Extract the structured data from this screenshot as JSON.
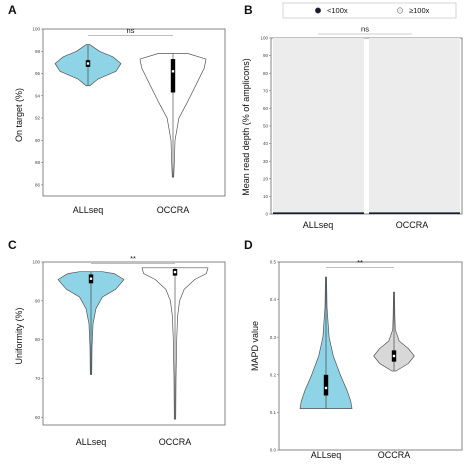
{
  "chart_data": [
    {
      "panel": "A",
      "type": "violin",
      "ylabel": "On target (%)",
      "ylim": [
        85,
        100
      ],
      "yticks": [
        "86",
        "88",
        "90",
        "92",
        "94",
        "96",
        "98",
        "100"
      ],
      "categories": [
        "ALLseq",
        "OCCRA"
      ],
      "violins": [
        {
          "category": "ALLseq",
          "fill": "#8fd3e6",
          "min": 94.9,
          "max": 98.6,
          "q1": 96.6,
          "median": 96.9,
          "q3": 97.2,
          "profile": [
            [
              94.9,
              0.05
            ],
            [
              95.5,
              0.3
            ],
            [
              96.2,
              0.85
            ],
            [
              96.9,
              1.0
            ],
            [
              97.5,
              0.75
            ],
            [
              98.0,
              0.35
            ],
            [
              98.6,
              0.05
            ]
          ]
        },
        {
          "category": "OCCRA",
          "fill": "#ffffff",
          "min": 86.7,
          "max": 97.8,
          "q1": 94.3,
          "median": 96.2,
          "q3": 97.3,
          "profile": [
            [
              86.7,
              0.02
            ],
            [
              88.0,
              0.04
            ],
            [
              90.0,
              0.06
            ],
            [
              92.0,
              0.18
            ],
            [
              93.5,
              0.45
            ],
            [
              95.0,
              0.7
            ],
            [
              96.5,
              0.95
            ],
            [
              97.3,
              1.0
            ],
            [
              97.8,
              0.45
            ]
          ]
        }
      ],
      "significance": {
        "label": "ns",
        "y": 99.4
      }
    },
    {
      "panel": "B",
      "type": "bar",
      "stacked": true,
      "ylabel": "Mean read depth (% of amplicons)",
      "ylim": [
        0,
        100
      ],
      "yticks": [
        "0",
        "10",
        "20",
        "30",
        "40",
        "50",
        "60",
        "70",
        "80",
        "90",
        "100"
      ],
      "categories": [
        "ALLseq",
        "OCCRA"
      ],
      "series": [
        {
          "name": "<100x",
          "color": "#1a1a2e",
          "values": [
            1,
            1
          ]
        },
        {
          "name": "≥100x",
          "color": "#ececec",
          "values": [
            99,
            99
          ]
        }
      ],
      "legend": "top",
      "significance": {
        "label": "ns",
        "y": 104
      }
    },
    {
      "panel": "C",
      "type": "violin",
      "ylabel": "Uniformity (%)",
      "ylim": [
        58,
        100
      ],
      "yticks": [
        "60",
        "70",
        "80",
        "90",
        "100"
      ],
      "categories": [
        "ALLseq",
        "OCCRA"
      ],
      "violins": [
        {
          "category": "ALLseq",
          "fill": "#8fd3e6",
          "min": 71,
          "max": 97.5,
          "q1": 94.5,
          "median": 95.7,
          "q3": 96.8,
          "profile": [
            [
              71,
              0.02
            ],
            [
              78,
              0.03
            ],
            [
              84,
              0.06
            ],
            [
              88,
              0.15
            ],
            [
              91,
              0.35
            ],
            [
              93,
              0.75
            ],
            [
              95.5,
              1.0
            ],
            [
              97.0,
              0.7
            ],
            [
              97.5,
              0.35
            ]
          ]
        },
        {
          "category": "OCCRA",
          "fill": "#ffffff",
          "min": 59.5,
          "max": 98.5,
          "q1": 96.5,
          "median": 97.4,
          "q3": 98.2,
          "profile": [
            [
              59.5,
              0.02
            ],
            [
              70,
              0.03
            ],
            [
              80,
              0.05
            ],
            [
              86,
              0.08
            ],
            [
              90,
              0.14
            ],
            [
              93,
              0.28
            ],
            [
              95.5,
              0.6
            ],
            [
              97,
              0.95
            ],
            [
              98.5,
              1.0
            ]
          ]
        }
      ],
      "significance": {
        "label": "**",
        "y": 99.6
      }
    },
    {
      "panel": "D",
      "type": "violin",
      "ylabel": "MAPD value",
      "ylim": [
        0,
        0.5
      ],
      "yticks": [
        "0.0",
        "0.1",
        "0.2",
        "0.3",
        "0.4",
        "0.5"
      ],
      "categories": [
        "ALLseq",
        "OCCRA"
      ],
      "violins": [
        {
          "category": "ALLseq",
          "fill": "#8fd3e6",
          "min": 0.11,
          "max": 0.46,
          "q1": 0.145,
          "median": 0.165,
          "q3": 0.2,
          "profile": [
            [
              0.11,
              1.0
            ],
            [
              0.13,
              0.95
            ],
            [
              0.16,
              0.8
            ],
            [
              0.2,
              0.55
            ],
            [
              0.25,
              0.28
            ],
            [
              0.3,
              0.12
            ],
            [
              0.38,
              0.04
            ],
            [
              0.46,
              0.02
            ]
          ]
        },
        {
          "category": "OCCRA",
          "fill": "#d8d8d8",
          "min": 0.21,
          "max": 0.42,
          "q1": 0.235,
          "median": 0.25,
          "q3": 0.265,
          "profile": [
            [
              0.21,
              0.08
            ],
            [
              0.23,
              0.55
            ],
            [
              0.25,
              0.78
            ],
            [
              0.27,
              0.55
            ],
            [
              0.29,
              0.2
            ],
            [
              0.32,
              0.05
            ],
            [
              0.36,
              0.03
            ],
            [
              0.42,
              0.02
            ]
          ]
        }
      ],
      "significance": {
        "label": "**",
        "y": 0.485
      }
    }
  ]
}
